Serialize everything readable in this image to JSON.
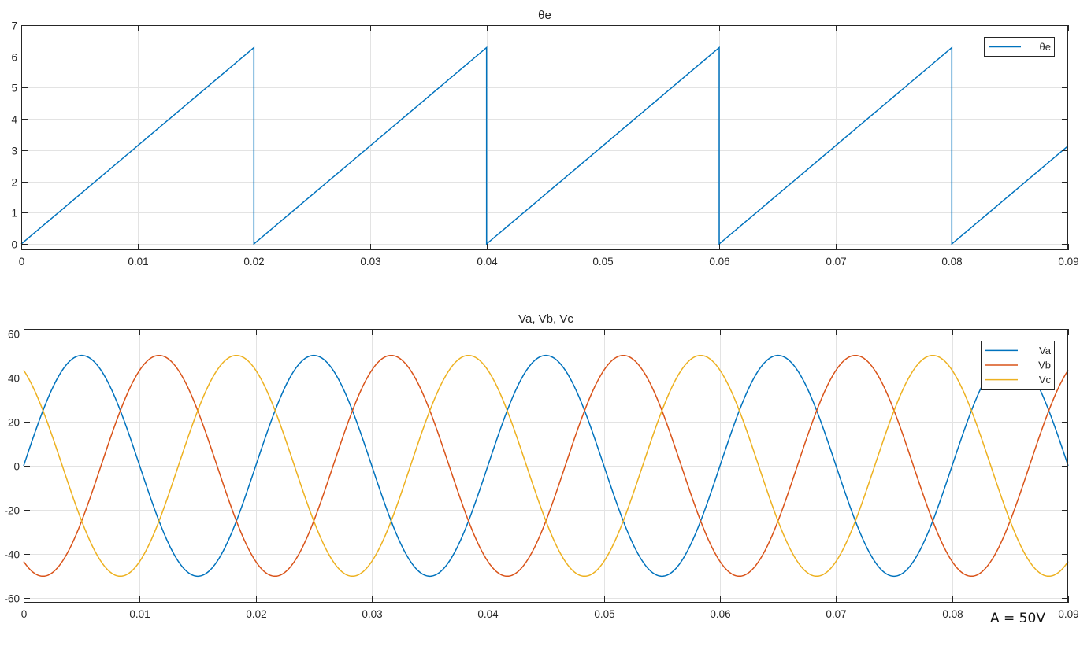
{
  "chart_data": [
    {
      "type": "line",
      "title": "θe",
      "xlabel": "",
      "ylabel": "",
      "xlim": [
        0,
        0.09
      ],
      "ylim": [
        -0.2,
        7
      ],
      "xticks": [
        0,
        0.01,
        0.02,
        0.03,
        0.04,
        0.05,
        0.06,
        0.07,
        0.08,
        0.09
      ],
      "xtick_labels": [
        "0",
        "0.01",
        "0.02",
        "0.03",
        "0.04",
        "0.05",
        "0.06",
        "0.07",
        "0.08",
        "0.09"
      ],
      "yticks": [
        0,
        1,
        2,
        3,
        4,
        5,
        6,
        7
      ],
      "ytick_labels": [
        "0",
        "1",
        "2",
        "3",
        "4",
        "5",
        "6",
        "7"
      ],
      "grid": true,
      "legend_position": "top-right",
      "series": [
        {
          "name": "θe",
          "color": "#0072BD",
          "x": [
            0,
            0.02,
            0.02,
            0.04,
            0.04,
            0.06,
            0.06,
            0.08,
            0.08,
            0.09
          ],
          "y": [
            0,
            6.283,
            0,
            6.283,
            0,
            6.283,
            0,
            6.283,
            0,
            3.14
          ]
        }
      ]
    },
    {
      "type": "line",
      "title": "Va, Vb, Vc",
      "xlabel": "",
      "ylabel": "",
      "xlim": [
        0,
        0.09
      ],
      "ylim": [
        -62,
        62
      ],
      "xticks": [
        0,
        0.01,
        0.02,
        0.03,
        0.04,
        0.05,
        0.06,
        0.07,
        0.08,
        0.09
      ],
      "xtick_labels": [
        "0",
        "0.01",
        "0.02",
        "0.03",
        "0.04",
        "0.05",
        "0.06",
        "0.07",
        "0.08",
        "0.09"
      ],
      "yticks": [
        -60,
        -40,
        -20,
        0,
        20,
        40,
        60
      ],
      "ytick_labels": [
        "-60",
        "-40",
        "-20",
        "0",
        "20",
        "40",
        "60"
      ],
      "grid": true,
      "legend_position": "top-right",
      "frequency_hz": 50,
      "amplitude": 50,
      "series": [
        {
          "name": "Va",
          "color": "#0072BD",
          "phase_deg": 0
        },
        {
          "name": "Vb",
          "color": "#D95319",
          "phase_deg": -120
        },
        {
          "name": "Vc",
          "color": "#EDB120",
          "phase_deg": 120
        }
      ]
    }
  ],
  "footnote": "A = 50V"
}
